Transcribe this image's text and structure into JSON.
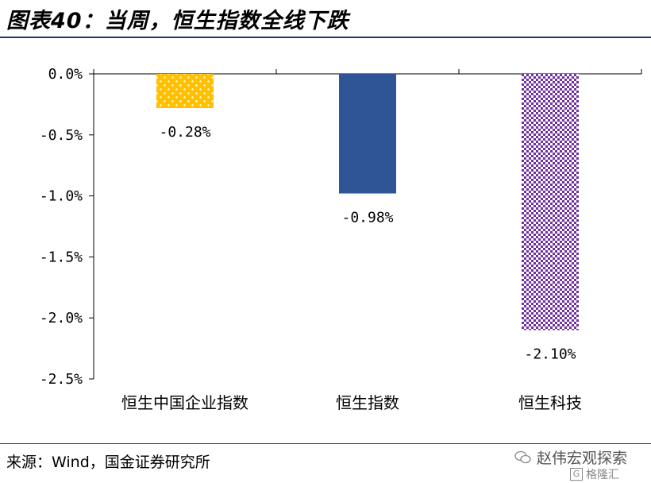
{
  "title": "图表40：当周，恒生指数全线下跌",
  "source": "来源：Wind，国金证券研究所",
  "watermark": "赵伟宏观探索",
  "watermark2": "格隆汇",
  "colors": {
    "rule": "#1f3864",
    "bar1": "#ffc000",
    "bar2": "#2f5597",
    "bar3": "#7030a0"
  },
  "chart_data": {
    "type": "bar",
    "categories": [
      "恒生中国企业指数",
      "恒生指数",
      "恒生科技"
    ],
    "values": [
      -0.28,
      -0.98,
      -2.1
    ],
    "data_labels": [
      "-0.28%",
      "-0.98%",
      "-2.10%"
    ],
    "ylim": [
      -2.5,
      0
    ],
    "yticks": [
      0.0,
      -0.5,
      -1.0,
      -1.5,
      -2.0,
      -2.5
    ],
    "ytick_labels": [
      "0.0%",
      "-0.5%",
      "-1.0%",
      "-1.5%",
      "-2.0%",
      "-2.5%"
    ],
    "fills": [
      "dotted-yellow",
      "solid-blue",
      "checker-purple"
    ],
    "title": "",
    "xlabel": "",
    "ylabel": "",
    "grid": false,
    "legend": "none"
  }
}
